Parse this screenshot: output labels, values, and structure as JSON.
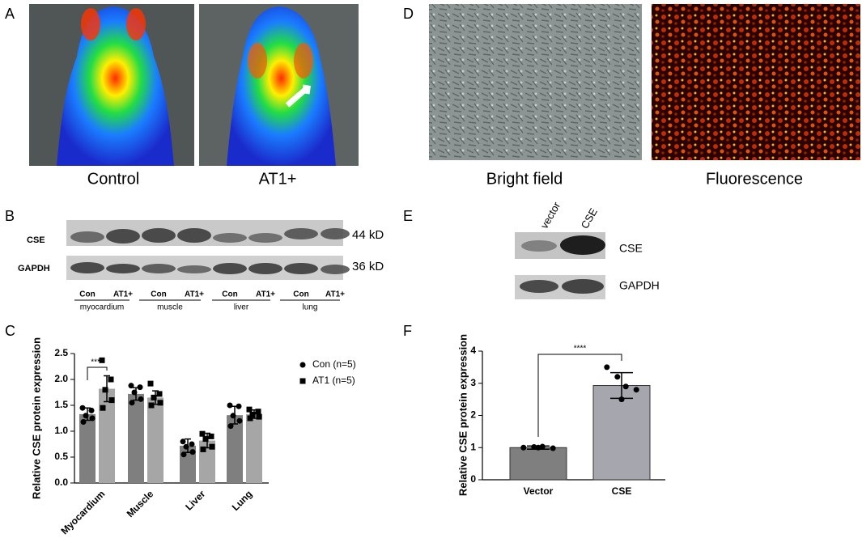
{
  "panel_labels": [
    "A",
    "B",
    "C",
    "D",
    "E",
    "F"
  ],
  "panel_a": {
    "captions": [
      "Control",
      "AT1+"
    ]
  },
  "panel_b": {
    "rows": [
      {
        "name": "CSE",
        "size": "44 kD"
      },
      {
        "name": "GAPDH",
        "size": "36 kD"
      }
    ],
    "lanes": [
      "Con",
      "AT1+",
      "Con",
      "AT1+",
      "Con",
      "AT1+",
      "Con",
      "AT1+"
    ],
    "groups": [
      "myocardium",
      "muscle",
      "liver",
      "lung"
    ]
  },
  "panel_d": {
    "captions": [
      "Bright field",
      "Fluorescence"
    ]
  },
  "panel_e": {
    "lanes": [
      "vector",
      "CSE"
    ],
    "rows": [
      "CSE",
      "GAPDH"
    ]
  },
  "chart_data": [
    {
      "type": "bar",
      "y_label": "Relative CSE protein expression",
      "categories": [
        "Myocardium",
        "Muscle",
        "Liver",
        "Lung"
      ],
      "annotation": "****",
      "series": [
        {
          "name": "Con (n=5)",
          "color": "#7f7f7f",
          "marker": "circle",
          "values": [
            1.33,
            1.72,
            0.72,
            1.31
          ],
          "errors": [
            0.12,
            0.12,
            0.13,
            0.17
          ],
          "points": [
            [
              1.45,
              1.4,
              1.3,
              1.25,
              1.18
            ],
            [
              1.88,
              1.85,
              1.75,
              1.62,
              1.55
            ],
            [
              0.8,
              0.75,
              0.7,
              0.6,
              0.55
            ],
            [
              1.5,
              1.48,
              1.3,
              1.2,
              1.1
            ]
          ]
        },
        {
          "name": "AT1 (n=5)",
          "color": "#a6a6a6",
          "marker": "square",
          "values": [
            1.82,
            1.65,
            0.82,
            1.33
          ],
          "errors": [
            0.25,
            0.13,
            0.14,
            0.08
          ],
          "points": [
            [
              2.37,
              2.0,
              1.8,
              1.6,
              1.45
            ],
            [
              1.92,
              1.72,
              1.65,
              1.55,
              1.5
            ],
            [
              0.95,
              0.9,
              0.85,
              0.7,
              0.65
            ],
            [
              1.42,
              1.38,
              1.32,
              1.28,
              1.25
            ]
          ]
        }
      ],
      "ylim": [
        0,
        2.5
      ],
      "yticks": [
        {
          "value": 0,
          "label": "0.0"
        },
        {
          "value": 0.5,
          "label": "0.5"
        },
        {
          "value": 1,
          "label": "1.0"
        },
        {
          "value": 1.5,
          "label": "1.5"
        },
        {
          "value": 2,
          "label": "2.0"
        },
        {
          "value": 2.5,
          "label": "2.5"
        }
      ]
    },
    {
      "type": "bar",
      "y_label": "Relative CSE protein expression",
      "categories": [
        "Vector",
        "CSE"
      ],
      "annotation": "****",
      "values": [
        1.0,
        2.93
      ],
      "errors": [
        0.05,
        0.4
      ],
      "colors": [
        "#7f7f7f",
        "#a6a6ae"
      ],
      "marker": "circle",
      "points": [
        [
          1.0,
          1.02,
          1.03,
          0.98,
          1.0
        ],
        [
          3.5,
          3.2,
          2.9,
          2.8,
          2.5
        ]
      ],
      "ylim": [
        0,
        4
      ],
      "yticks": [
        0,
        1,
        2,
        3,
        4
      ]
    }
  ]
}
